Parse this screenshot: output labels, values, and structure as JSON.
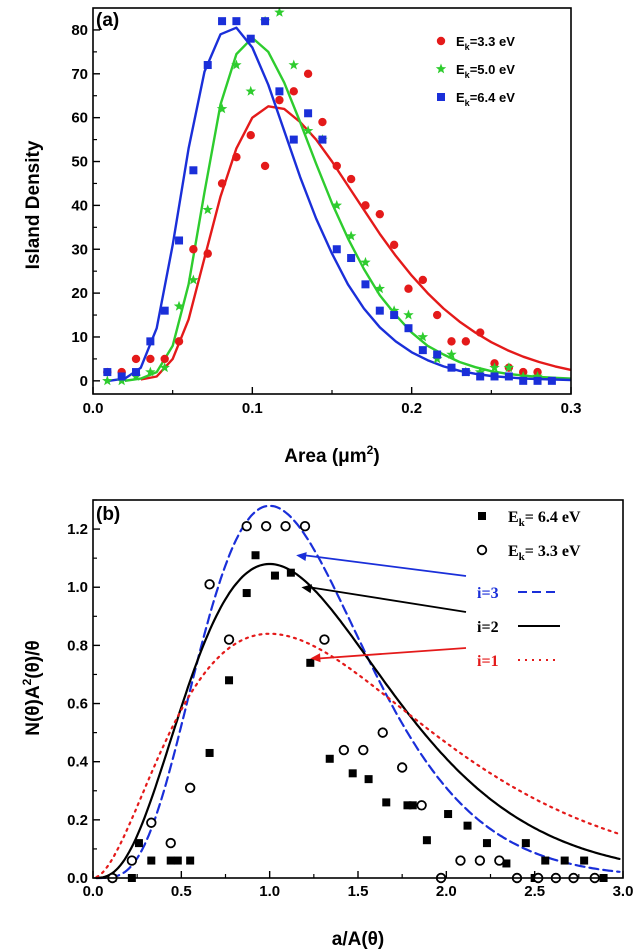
{
  "chart_data": [
    {
      "type": "scatter",
      "panel_label": "(a)",
      "xlabel": "Area (μm",
      "xlabel_sup": "2",
      "xlabel_end": ")",
      "ylabel": "Island Density",
      "xlim": [
        0.0,
        0.3
      ],
      "ylim": [
        -3,
        85
      ],
      "xticks": [
        "0.0",
        "0.1",
        "0.2",
        "0.3"
      ],
      "yticks": [
        "0",
        "10",
        "20",
        "30",
        "40",
        "50",
        "60",
        "70",
        "80"
      ],
      "legend_position": "top-right",
      "series": [
        {
          "name": "E",
          "name_sub": "k",
          "name_rest": "=3.3 eV",
          "color": "#e41a1a",
          "marker": "circle",
          "points": [
            [
              0.009,
              2
            ],
            [
              0.018,
              2
            ],
            [
              0.027,
              5
            ],
            [
              0.036,
              5
            ],
            [
              0.045,
              5
            ],
            [
              0.054,
              9
            ],
            [
              0.063,
              30
            ],
            [
              0.072,
              29
            ],
            [
              0.081,
              45
            ],
            [
              0.09,
              51
            ],
            [
              0.099,
              56
            ],
            [
              0.108,
              49
            ],
            [
              0.117,
              64
            ],
            [
              0.126,
              66
            ],
            [
              0.135,
              70
            ],
            [
              0.144,
              59
            ],
            [
              0.153,
              49
            ],
            [
              0.162,
              46
            ],
            [
              0.171,
              40
            ],
            [
              0.18,
              38
            ],
            [
              0.189,
              31
            ],
            [
              0.198,
              21
            ],
            [
              0.207,
              23
            ],
            [
              0.216,
              15
            ],
            [
              0.225,
              9
            ],
            [
              0.234,
              9
            ],
            [
              0.243,
              11
            ],
            [
              0.252,
              4
            ],
            [
              0.261,
              3
            ],
            [
              0.27,
              2
            ],
            [
              0.279,
              2
            ]
          ],
          "fit": [
            [
              0.03,
              0.3
            ],
            [
              0.04,
              1
            ],
            [
              0.05,
              5
            ],
            [
              0.06,
              14
            ],
            [
              0.07,
              28
            ],
            [
              0.08,
              42
            ],
            [
              0.09,
              53
            ],
            [
              0.1,
              60
            ],
            [
              0.11,
              62.6
            ],
            [
              0.12,
              62
            ],
            [
              0.13,
              59
            ],
            [
              0.14,
              55
            ],
            [
              0.15,
              50
            ],
            [
              0.16,
              44.5
            ],
            [
              0.17,
              39
            ],
            [
              0.18,
              33.5
            ],
            [
              0.19,
              28.5
            ],
            [
              0.2,
              24
            ],
            [
              0.21,
              20
            ],
            [
              0.22,
              16.5
            ],
            [
              0.23,
              13.5
            ],
            [
              0.24,
              11
            ],
            [
              0.25,
              8.8
            ],
            [
              0.26,
              7
            ],
            [
              0.27,
              5.5
            ],
            [
              0.28,
              4.3
            ],
            [
              0.29,
              3.3
            ],
            [
              0.3,
              2.5
            ]
          ]
        },
        {
          "name": "E",
          "name_sub": "k",
          "name_rest": "=5.0 eV",
          "color": "#2ecc2e",
          "marker": "star",
          "points": [
            [
              0.009,
              0
            ],
            [
              0.018,
              0
            ],
            [
              0.027,
              1
            ],
            [
              0.036,
              2
            ],
            [
              0.045,
              3
            ],
            [
              0.054,
              17
            ],
            [
              0.063,
              23
            ],
            [
              0.072,
              39
            ],
            [
              0.081,
              62
            ],
            [
              0.09,
              72
            ],
            [
              0.099,
              66
            ],
            [
              0.108,
              82
            ],
            [
              0.117,
              84
            ],
            [
              0.126,
              72
            ],
            [
              0.135,
              57
            ],
            [
              0.144,
              55
            ],
            [
              0.153,
              40
            ],
            [
              0.162,
              33
            ],
            [
              0.171,
              27
            ],
            [
              0.18,
              21
            ],
            [
              0.189,
              16
            ],
            [
              0.198,
              15
            ],
            [
              0.207,
              10
            ],
            [
              0.216,
              5
            ],
            [
              0.225,
              6
            ],
            [
              0.234,
              2
            ],
            [
              0.243,
              2
            ],
            [
              0.252,
              3
            ],
            [
              0.261,
              3
            ],
            [
              0.27,
              1
            ],
            [
              0.279,
              1
            ]
          ],
          "fit": [
            [
              0.02,
              0
            ],
            [
              0.03,
              0.5
            ],
            [
              0.04,
              2
            ],
            [
              0.05,
              8
            ],
            [
              0.06,
              22
            ],
            [
              0.07,
              43
            ],
            [
              0.08,
              63
            ],
            [
              0.09,
              74.5
            ],
            [
              0.1,
              78.2
            ],
            [
              0.11,
              75
            ],
            [
              0.12,
              68
            ],
            [
              0.13,
              59
            ],
            [
              0.14,
              49.5
            ],
            [
              0.15,
              40.5
            ],
            [
              0.16,
              32.5
            ],
            [
              0.17,
              25.5
            ],
            [
              0.18,
              19.5
            ],
            [
              0.19,
              15
            ],
            [
              0.2,
              11
            ],
            [
              0.21,
              8
            ],
            [
              0.22,
              6
            ],
            [
              0.23,
              4.3
            ],
            [
              0.24,
              3.1
            ],
            [
              0.25,
              2.2
            ],
            [
              0.26,
              1.6
            ],
            [
              0.27,
              1.2
            ],
            [
              0.28,
              0.9
            ],
            [
              0.29,
              0.7
            ],
            [
              0.3,
              0.5
            ]
          ]
        },
        {
          "name": "E",
          "name_sub": "k",
          "name_rest": "=6.4 eV",
          "color": "#1a2fd9",
          "marker": "square",
          "points": [
            [
              0.009,
              2
            ],
            [
              0.018,
              1
            ],
            [
              0.027,
              2
            ],
            [
              0.036,
              9
            ],
            [
              0.045,
              16
            ],
            [
              0.054,
              32
            ],
            [
              0.063,
              48
            ],
            [
              0.072,
              72
            ],
            [
              0.081,
              82
            ],
            [
              0.09,
              82
            ],
            [
              0.099,
              78
            ],
            [
              0.108,
              82
            ],
            [
              0.117,
              66
            ],
            [
              0.126,
              55
            ],
            [
              0.135,
              61
            ],
            [
              0.144,
              55
            ],
            [
              0.153,
              30
            ],
            [
              0.162,
              28
            ],
            [
              0.171,
              22
            ],
            [
              0.18,
              16
            ],
            [
              0.189,
              15
            ],
            [
              0.198,
              12
            ],
            [
              0.207,
              7
            ],
            [
              0.216,
              6
            ],
            [
              0.225,
              3
            ],
            [
              0.234,
              2
            ],
            [
              0.243,
              1
            ],
            [
              0.252,
              1
            ],
            [
              0.261,
              1
            ],
            [
              0.27,
              0
            ],
            [
              0.279,
              0
            ],
            [
              0.288,
              0
            ]
          ],
          "fit": [
            [
              0.01,
              0
            ],
            [
              0.02,
              0.5
            ],
            [
              0.03,
              3
            ],
            [
              0.04,
              12
            ],
            [
              0.05,
              31
            ],
            [
              0.06,
              53
            ],
            [
              0.07,
              70.5
            ],
            [
              0.08,
              79
            ],
            [
              0.09,
              80.5
            ],
            [
              0.1,
              76
            ],
            [
              0.11,
              67.5
            ],
            [
              0.12,
              57
            ],
            [
              0.13,
              46.5
            ],
            [
              0.14,
              37
            ],
            [
              0.15,
              29
            ],
            [
              0.16,
              22
            ],
            [
              0.17,
              16.5
            ],
            [
              0.18,
              12.2
            ],
            [
              0.19,
              9
            ],
            [
              0.2,
              6.5
            ],
            [
              0.21,
              4.7
            ],
            [
              0.22,
              3.3
            ],
            [
              0.23,
              2.3
            ],
            [
              0.24,
              1.6
            ],
            [
              0.25,
              1.1
            ],
            [
              0.26,
              0.8
            ],
            [
              0.27,
              0.5
            ],
            [
              0.28,
              0.4
            ],
            [
              0.29,
              0.3
            ],
            [
              0.3,
              0.2
            ]
          ]
        }
      ]
    },
    {
      "type": "scatter",
      "panel_label": "(b)",
      "xlabel": "a/A(θ)",
      "ylabel": "N(θ)A",
      "ylabel_sup": "2",
      "ylabel_end": "(θ)/θ",
      "xlim": [
        0.0,
        3.0
      ],
      "ylim": [
        0.0,
        1.3
      ],
      "xticks": [
        "0.0",
        "0.5",
        "1.0",
        "1.5",
        "2.0",
        "2.5",
        "3.0"
      ],
      "yticks": [
        "0.0",
        "0.2",
        "0.4",
        "0.6",
        "0.8",
        "1.0",
        "1.2"
      ],
      "legend_position": "top-right",
      "series": [
        {
          "name": "E",
          "name_sub": "k",
          "name_rest": "= 6.4 eV",
          "color": "#000000",
          "marker": "square",
          "points": [
            [
              0.11,
              0.0
            ],
            [
              0.22,
              0.0
            ],
            [
              0.26,
              0.12
            ],
            [
              0.33,
              0.06
            ],
            [
              0.44,
              0.06
            ],
            [
              0.48,
              0.06
            ],
            [
              0.55,
              0.06
            ],
            [
              0.66,
              0.43
            ],
            [
              0.77,
              0.68
            ],
            [
              0.87,
              0.98
            ],
            [
              0.92,
              1.11
            ],
            [
              1.03,
              1.04
            ],
            [
              1.12,
              1.05
            ],
            [
              1.23,
              0.74
            ],
            [
              1.34,
              0.41
            ],
            [
              1.47,
              0.36
            ],
            [
              1.56,
              0.34
            ],
            [
              1.66,
              0.26
            ],
            [
              1.78,
              0.25
            ],
            [
              1.81,
              0.25
            ],
            [
              1.89,
              0.13
            ],
            [
              2.01,
              0.22
            ],
            [
              2.12,
              0.18
            ],
            [
              2.23,
              0.12
            ],
            [
              2.34,
              0.05
            ],
            [
              2.45,
              0.12
            ],
            [
              2.5,
              0.0
            ],
            [
              2.56,
              0.06
            ],
            [
              2.67,
              0.06
            ],
            [
              2.78,
              0.06
            ],
            [
              2.89,
              0.0
            ]
          ]
        },
        {
          "name": "E",
          "name_sub": "k",
          "name_rest": "= 3.3 eV",
          "color": "#000000",
          "marker": "circle-open",
          "points": [
            [
              0.11,
              0.0
            ],
            [
              0.22,
              0.06
            ],
            [
              0.33,
              0.19
            ],
            [
              0.44,
              0.12
            ],
            [
              0.55,
              0.31
            ],
            [
              0.66,
              1.01
            ],
            [
              0.77,
              0.82
            ],
            [
              0.87,
              1.21
            ],
            [
              0.98,
              1.21
            ],
            [
              1.09,
              1.21
            ],
            [
              1.2,
              1.21
            ],
            [
              1.31,
              0.82
            ],
            [
              1.42,
              0.44
            ],
            [
              1.53,
              0.44
            ],
            [
              1.64,
              0.5
            ],
            [
              1.75,
              0.38
            ],
            [
              1.86,
              0.25
            ],
            [
              1.97,
              0.0
            ],
            [
              2.08,
              0.06
            ],
            [
              2.19,
              0.06
            ],
            [
              2.3,
              0.06
            ],
            [
              2.4,
              0.0
            ],
            [
              2.52,
              0.0
            ],
            [
              2.62,
              0.0
            ],
            [
              2.72,
              0.0
            ],
            [
              2.84,
              0.0
            ]
          ]
        }
      ],
      "curves": [
        {
          "name": "i=3",
          "color": "#1a2fd9",
          "style": "dashed",
          "peak": 1.28,
          "shape": 4.62
        },
        {
          "name": "i=2",
          "color": "#000000",
          "style": "solid",
          "peak": 1.08,
          "shape": 3.15
        },
        {
          "name": "i=1",
          "color": "#e41a1a",
          "style": "dotted",
          "peak": 0.84,
          "shape": 1.93
        }
      ]
    }
  ]
}
